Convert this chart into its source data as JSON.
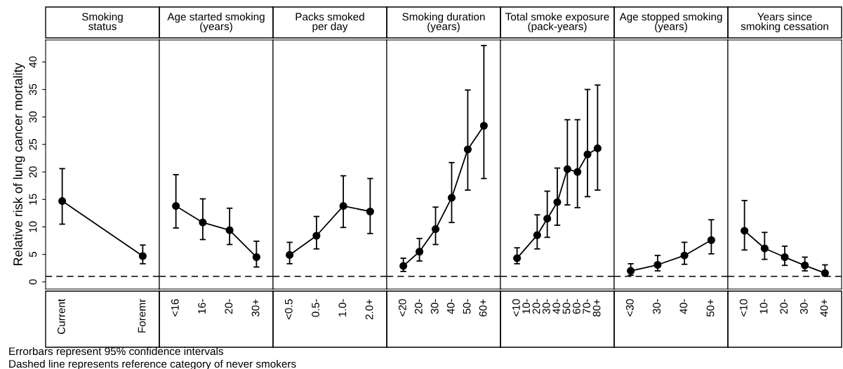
{
  "chart_data": [
    {
      "type": "line",
      "title": "Smoking\nstatus",
      "ylabel": "Relative risk of lung cancer mortality",
      "categories": [
        "Current",
        "Foremr"
      ],
      "values": [
        14.7,
        4.7
      ],
      "errors": [
        [
          10.5,
          20.6
        ],
        [
          3.3,
          6.7
        ]
      ],
      "color": "#000000",
      "marker": "circle",
      "line_style": "solid",
      "ylim": [
        -1.3,
        44
      ],
      "yticks": [
        0,
        5,
        10,
        15,
        20,
        25,
        30,
        35,
        40
      ],
      "ref_lines": [
        {
          "axis": "y",
          "value": 1,
          "line_style": "dashed"
        }
      ],
      "annotations": [
        "Errorbars represent 95% confidence intervals",
        "Dashed line represents reference category of never smokers"
      ]
    },
    {
      "type": "line",
      "title": "Age started smoking\n(years)",
      "categories": [
        "<16",
        "16-",
        "20-",
        "30+"
      ],
      "values": [
        13.8,
        10.8,
        9.4,
        4.5
      ],
      "errors": [
        [
          9.8,
          19.5
        ],
        [
          7.7,
          15.1
        ],
        [
          6.8,
          13.4
        ],
        [
          2.7,
          7.4
        ]
      ],
      "color": "#000000",
      "marker": "circle",
      "line_style": "solid",
      "ylim": [
        -1.3,
        44
      ],
      "tick_labels": "x",
      "ref_lines": [
        {
          "axis": "y",
          "value": 1,
          "line_style": "dashed"
        }
      ]
    },
    {
      "type": "line",
      "title": "Packs smoked\nper day",
      "categories": [
        "<0.5",
        "0.5-",
        "1.0-",
        "2.0+"
      ],
      "values": [
        4.9,
        8.4,
        13.8,
        12.8
      ],
      "errors": [
        [
          3.3,
          7.2
        ],
        [
          6.0,
          11.9
        ],
        [
          9.9,
          19.3
        ],
        [
          8.8,
          18.8
        ]
      ],
      "color": "#000000",
      "marker": "circle",
      "line_style": "solid",
      "ylim": [
        -1.3,
        44
      ],
      "tick_labels": "x",
      "ref_lines": [
        {
          "axis": "y",
          "value": 1,
          "line_style": "dashed"
        }
      ]
    },
    {
      "type": "line",
      "title": "Smoking duration\n(years)",
      "categories": [
        "<20",
        "20-",
        "30-",
        "40-",
        "50-",
        "60+"
      ],
      "values": [
        2.9,
        5.5,
        9.6,
        15.3,
        24.1,
        28.4
      ],
      "errors": [
        [
          1.9,
          4.3
        ],
        [
          3.8,
          7.9
        ],
        [
          6.8,
          13.6
        ],
        [
          10.8,
          21.7
        ],
        [
          16.7,
          34.9
        ],
        [
          18.8,
          43.0
        ]
      ],
      "color": "#000000",
      "marker": "circle",
      "line_style": "solid",
      "ylim": [
        -1.3,
        44
      ],
      "tick_labels": "x",
      "ref_lines": [
        {
          "axis": "y",
          "value": 1,
          "line_style": "dashed"
        }
      ]
    },
    {
      "type": "line",
      "title": "Total smoke exposure\n(pack-years)",
      "categories": [
        "<10",
        "10-",
        "20-",
        "30-",
        "40-",
        "50-",
        "60-",
        "70-",
        "80+"
      ],
      "values": [
        4.3,
        null,
        8.5,
        11.5,
        14.5,
        20.5,
        20.0,
        23.2,
        24.3
      ],
      "errors": [
        [
          3.3,
          6.2
        ],
        null,
        [
          6.0,
          12.2
        ],
        [
          8.1,
          16.5
        ],
        [
          10.3,
          20.7
        ],
        [
          14.0,
          29.5
        ],
        [
          13.5,
          29.5
        ],
        [
          15.5,
          35.0
        ],
        [
          16.7,
          35.8
        ]
      ],
      "color": "#000000",
      "marker": "circle",
      "line_style": "solid",
      "ylim": [
        -1.3,
        44
      ],
      "tick_labels": "x",
      "ref_lines": [
        {
          "axis": "y",
          "value": 1,
          "line_style": "dashed"
        }
      ]
    },
    {
      "type": "line",
      "title": "Age stopped smoking\n(years)",
      "categories": [
        "<30",
        "30-",
        "40-",
        "50+"
      ],
      "values": [
        2.0,
        3.1,
        4.8,
        7.6
      ],
      "errors": [
        [
          1.2,
          3.3
        ],
        [
          2.0,
          4.8
        ],
        [
          3.2,
          7.2
        ],
        [
          5.1,
          11.3
        ]
      ],
      "color": "#000000",
      "marker": "circle",
      "line_style": "solid",
      "ylim": [
        -1.3,
        44
      ],
      "tick_labels": "x",
      "ref_lines": [
        {
          "axis": "y",
          "value": 1,
          "line_style": "dashed"
        }
      ]
    },
    {
      "type": "line",
      "title": "Years since\nsmoking cessation",
      "categories": [
        "<10",
        "10-",
        "20-",
        "30-",
        "40+"
      ],
      "values": [
        9.3,
        6.1,
        4.5,
        3.0,
        1.6
      ],
      "errors": [
        [
          5.8,
          14.8
        ],
        [
          4.1,
          9.0
        ],
        [
          3.0,
          6.5
        ],
        [
          2.0,
          4.5
        ],
        [
          1.1,
          3.1
        ]
      ],
      "color": "#000000",
      "marker": "circle",
      "line_style": "solid",
      "ylim": [
        -1.3,
        44
      ],
      "tick_labels": "x",
      "ref_lines": [
        {
          "axis": "y",
          "value": 1,
          "line_style": "dashed"
        }
      ]
    }
  ]
}
